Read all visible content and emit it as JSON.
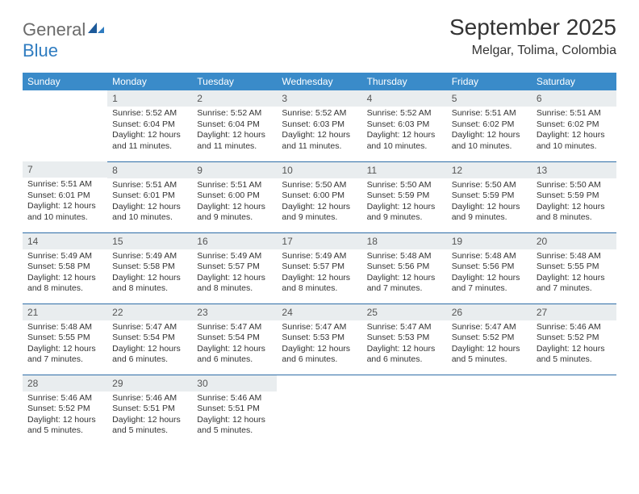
{
  "logo": {
    "general": "General",
    "blue": "Blue"
  },
  "title": "September 2025",
  "location": "Melgar, Tolima, Colombia",
  "colors": {
    "header_bg": "#3a8bc9",
    "header_fg": "#ffffff",
    "daynum_bg": "#e9edef",
    "row_divider": "#2f6ea8",
    "text": "#333333",
    "logo_gray": "#6b6b6b",
    "logo_blue": "#2f7cc0"
  },
  "typography": {
    "title_fontsize": 28,
    "location_fontsize": 16,
    "dayhdr_fontsize": 12,
    "daynum_fontsize": 12,
    "cell_fontsize": 10.5
  },
  "day_headers": [
    "Sunday",
    "Monday",
    "Tuesday",
    "Wednesday",
    "Thursday",
    "Friday",
    "Saturday"
  ],
  "first_weekday_index": 1,
  "days": [
    {
      "n": 1,
      "sunrise": "5:52 AM",
      "sunset": "6:04 PM",
      "daylight": "12 hours and 11 minutes."
    },
    {
      "n": 2,
      "sunrise": "5:52 AM",
      "sunset": "6:04 PM",
      "daylight": "12 hours and 11 minutes."
    },
    {
      "n": 3,
      "sunrise": "5:52 AM",
      "sunset": "6:03 PM",
      "daylight": "12 hours and 11 minutes."
    },
    {
      "n": 4,
      "sunrise": "5:52 AM",
      "sunset": "6:03 PM",
      "daylight": "12 hours and 10 minutes."
    },
    {
      "n": 5,
      "sunrise": "5:51 AM",
      "sunset": "6:02 PM",
      "daylight": "12 hours and 10 minutes."
    },
    {
      "n": 6,
      "sunrise": "5:51 AM",
      "sunset": "6:02 PM",
      "daylight": "12 hours and 10 minutes."
    },
    {
      "n": 7,
      "sunrise": "5:51 AM",
      "sunset": "6:01 PM",
      "daylight": "12 hours and 10 minutes."
    },
    {
      "n": 8,
      "sunrise": "5:51 AM",
      "sunset": "6:01 PM",
      "daylight": "12 hours and 10 minutes."
    },
    {
      "n": 9,
      "sunrise": "5:51 AM",
      "sunset": "6:00 PM",
      "daylight": "12 hours and 9 minutes."
    },
    {
      "n": 10,
      "sunrise": "5:50 AM",
      "sunset": "6:00 PM",
      "daylight": "12 hours and 9 minutes."
    },
    {
      "n": 11,
      "sunrise": "5:50 AM",
      "sunset": "5:59 PM",
      "daylight": "12 hours and 9 minutes."
    },
    {
      "n": 12,
      "sunrise": "5:50 AM",
      "sunset": "5:59 PM",
      "daylight": "12 hours and 9 minutes."
    },
    {
      "n": 13,
      "sunrise": "5:50 AM",
      "sunset": "5:59 PM",
      "daylight": "12 hours and 8 minutes."
    },
    {
      "n": 14,
      "sunrise": "5:49 AM",
      "sunset": "5:58 PM",
      "daylight": "12 hours and 8 minutes."
    },
    {
      "n": 15,
      "sunrise": "5:49 AM",
      "sunset": "5:58 PM",
      "daylight": "12 hours and 8 minutes."
    },
    {
      "n": 16,
      "sunrise": "5:49 AM",
      "sunset": "5:57 PM",
      "daylight": "12 hours and 8 minutes."
    },
    {
      "n": 17,
      "sunrise": "5:49 AM",
      "sunset": "5:57 PM",
      "daylight": "12 hours and 8 minutes."
    },
    {
      "n": 18,
      "sunrise": "5:48 AM",
      "sunset": "5:56 PM",
      "daylight": "12 hours and 7 minutes."
    },
    {
      "n": 19,
      "sunrise": "5:48 AM",
      "sunset": "5:56 PM",
      "daylight": "12 hours and 7 minutes."
    },
    {
      "n": 20,
      "sunrise": "5:48 AM",
      "sunset": "5:55 PM",
      "daylight": "12 hours and 7 minutes."
    },
    {
      "n": 21,
      "sunrise": "5:48 AM",
      "sunset": "5:55 PM",
      "daylight": "12 hours and 7 minutes."
    },
    {
      "n": 22,
      "sunrise": "5:47 AM",
      "sunset": "5:54 PM",
      "daylight": "12 hours and 6 minutes."
    },
    {
      "n": 23,
      "sunrise": "5:47 AM",
      "sunset": "5:54 PM",
      "daylight": "12 hours and 6 minutes."
    },
    {
      "n": 24,
      "sunrise": "5:47 AM",
      "sunset": "5:53 PM",
      "daylight": "12 hours and 6 minutes."
    },
    {
      "n": 25,
      "sunrise": "5:47 AM",
      "sunset": "5:53 PM",
      "daylight": "12 hours and 6 minutes."
    },
    {
      "n": 26,
      "sunrise": "5:47 AM",
      "sunset": "5:52 PM",
      "daylight": "12 hours and 5 minutes."
    },
    {
      "n": 27,
      "sunrise": "5:46 AM",
      "sunset": "5:52 PM",
      "daylight": "12 hours and 5 minutes."
    },
    {
      "n": 28,
      "sunrise": "5:46 AM",
      "sunset": "5:52 PM",
      "daylight": "12 hours and 5 minutes."
    },
    {
      "n": 29,
      "sunrise": "5:46 AM",
      "sunset": "5:51 PM",
      "daylight": "12 hours and 5 minutes."
    },
    {
      "n": 30,
      "sunrise": "5:46 AM",
      "sunset": "5:51 PM",
      "daylight": "12 hours and 5 minutes."
    }
  ],
  "labels": {
    "sunrise": "Sunrise: ",
    "sunset": "Sunset: ",
    "daylight": "Daylight: "
  }
}
